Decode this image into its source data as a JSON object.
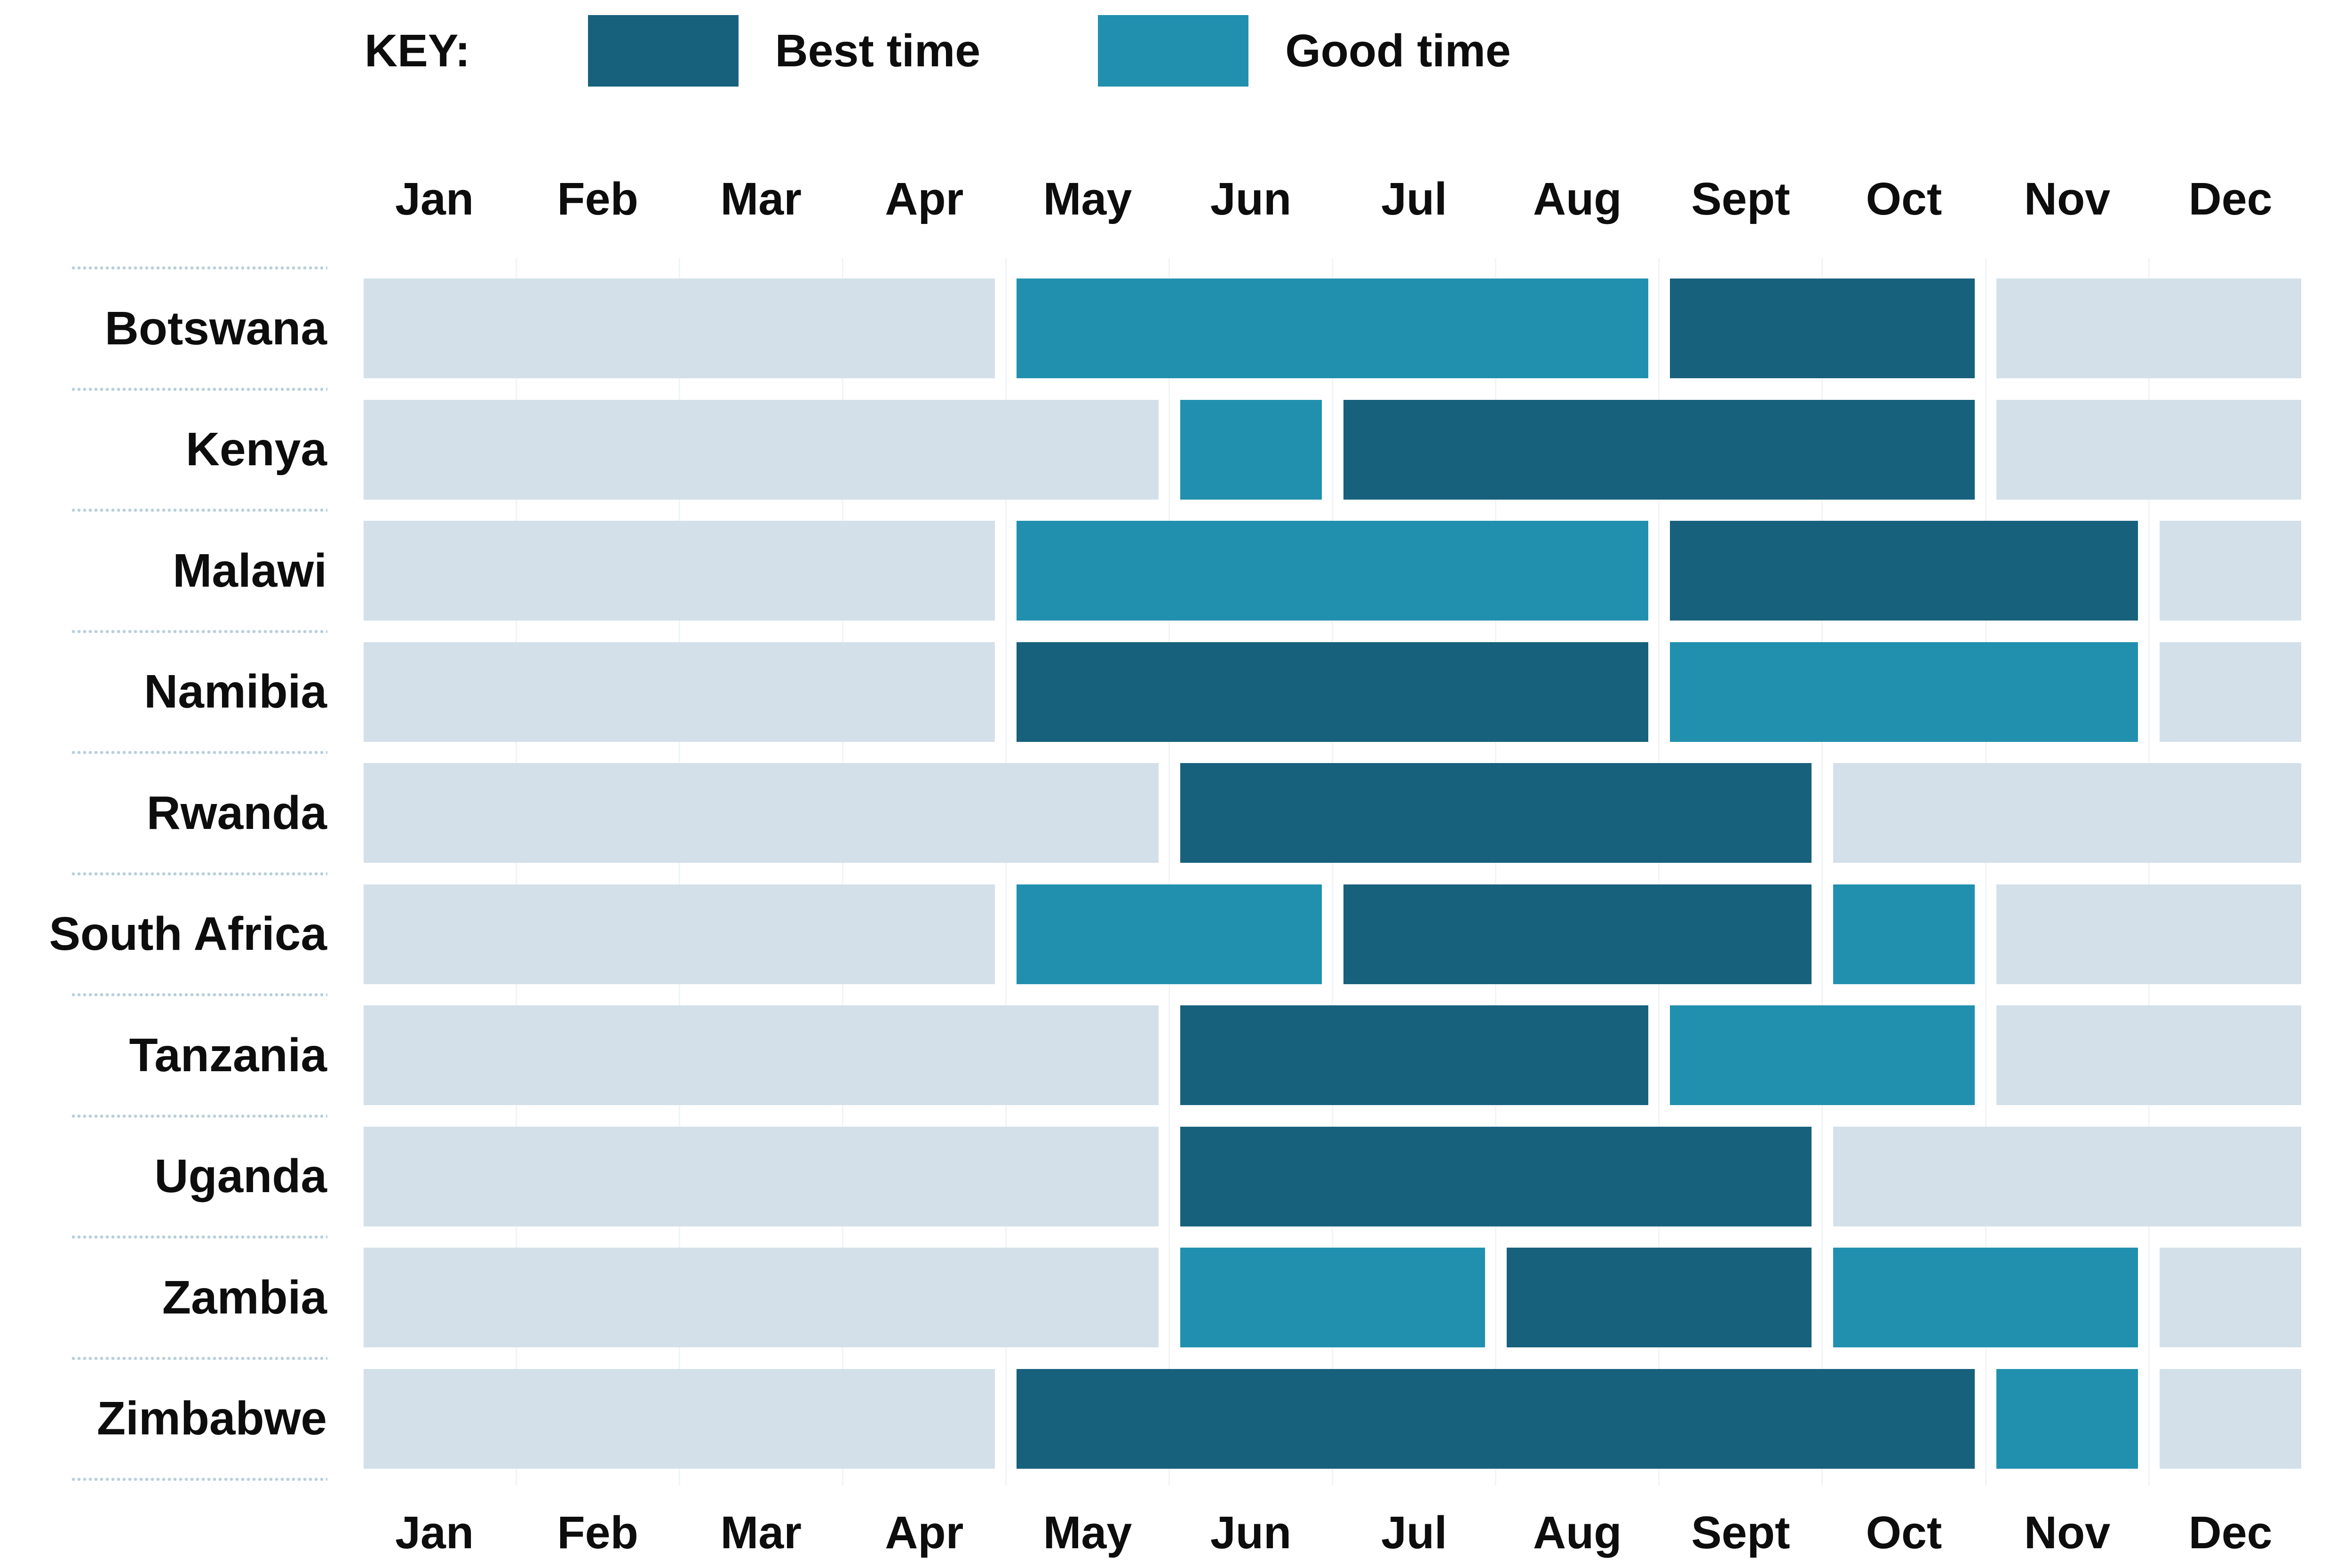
{
  "key": {
    "label": "KEY:",
    "items": [
      {
        "label": "Best time",
        "type": "best"
      },
      {
        "label": "Good time",
        "type": "good"
      }
    ]
  },
  "colors": {
    "best": "#17617d",
    "good": "#2190ae",
    "none": "#d3e0ea",
    "dot": "#b7cedb",
    "grid": "#f0f4f7",
    "text": "#0d0d0d"
  },
  "chart_data": {
    "type": "heatmap",
    "title": "",
    "categories": [
      "Jan",
      "Feb",
      "Mar",
      "Apr",
      "May",
      "Jun",
      "Jul",
      "Aug",
      "Sept",
      "Oct",
      "Nov",
      "Dec"
    ],
    "legend": [
      "Best time",
      "Good time"
    ],
    "legend_position": "top",
    "value_meaning": {
      "best": "Best time",
      "good": "Good time",
      "none": "off-season / not highlighted"
    },
    "rows": [
      {
        "country": "Botswana",
        "status_by_month": [
          "none",
          "none",
          "none",
          "none",
          "good",
          "good",
          "good",
          "good",
          "best",
          "best",
          "none",
          "none"
        ]
      },
      {
        "country": "Kenya",
        "status_by_month": [
          "none",
          "none",
          "none",
          "none",
          "none",
          "good",
          "best",
          "best",
          "best",
          "best",
          "none",
          "none"
        ]
      },
      {
        "country": "Malawi",
        "status_by_month": [
          "none",
          "none",
          "none",
          "none",
          "good",
          "good",
          "good",
          "good",
          "best",
          "best",
          "best",
          "none"
        ]
      },
      {
        "country": "Namibia",
        "status_by_month": [
          "none",
          "none",
          "none",
          "none",
          "best",
          "best",
          "best",
          "best",
          "good",
          "good",
          "good",
          "none"
        ]
      },
      {
        "country": "Rwanda",
        "status_by_month": [
          "none",
          "none",
          "none",
          "none",
          "none",
          "best",
          "best",
          "best",
          "best",
          "none",
          "none",
          "none"
        ]
      },
      {
        "country": "South Africa",
        "status_by_month": [
          "none",
          "none",
          "none",
          "none",
          "good",
          "good",
          "best",
          "best",
          "best",
          "good",
          "none",
          "none"
        ]
      },
      {
        "country": "Tanzania",
        "status_by_month": [
          "none",
          "none",
          "none",
          "none",
          "none",
          "best",
          "best",
          "best",
          "good",
          "good",
          "none",
          "none"
        ]
      },
      {
        "country": "Uganda",
        "status_by_month": [
          "none",
          "none",
          "none",
          "none",
          "none",
          "best",
          "best",
          "best",
          "best",
          "none",
          "none",
          "none"
        ]
      },
      {
        "country": "Zambia",
        "status_by_month": [
          "none",
          "none",
          "none",
          "none",
          "none",
          "good",
          "good",
          "best",
          "best",
          "good",
          "good",
          "none"
        ]
      },
      {
        "country": "Zimbabwe",
        "status_by_month": [
          "none",
          "none",
          "none",
          "none",
          "best",
          "best",
          "best",
          "best",
          "best",
          "best",
          "good",
          "none"
        ]
      }
    ]
  }
}
